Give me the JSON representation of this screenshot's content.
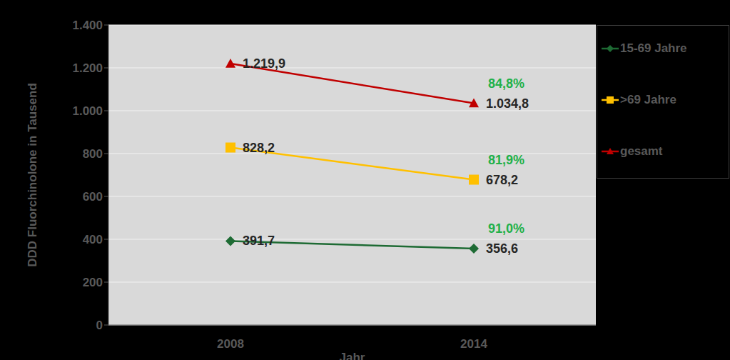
{
  "chart_data": {
    "type": "line",
    "x_label": "Jahr",
    "y_label": "DDD Fluorchinolone in Tausend",
    "categories": [
      "2008",
      "2014"
    ],
    "series": [
      {
        "name": "15-69 Jahre",
        "color": "#1e6b34",
        "marker": "diamond",
        "values": [
          391.7,
          356.6
        ],
        "value_labels": [
          "391,7",
          "356,6"
        ],
        "annotation": "91,0%"
      },
      {
        "name": ">69 Jahre",
        "color": "#ffc000",
        "marker": "square",
        "values": [
          828.2,
          678.2
        ],
        "value_labels": [
          "828,2",
          "678,2"
        ],
        "annotation": "81,9%"
      },
      {
        "name": "gesamt",
        "color": "#c00000",
        "marker": "triangle",
        "values": [
          1219.9,
          1034.8
        ],
        "value_labels": [
          "1.219,9",
          "1.034,8"
        ],
        "annotation": "84,8%"
      }
    ],
    "ylim": [
      0,
      1400
    ],
    "yticks": [
      0,
      200,
      400,
      600,
      800,
      {
        "value": 1000,
        "label": "1.000"
      },
      {
        "value": 1200,
        "label": "1.200"
      },
      {
        "value": 1400,
        "label": "1.400"
      }
    ],
    "grid": true,
    "data_labels": true
  }
}
